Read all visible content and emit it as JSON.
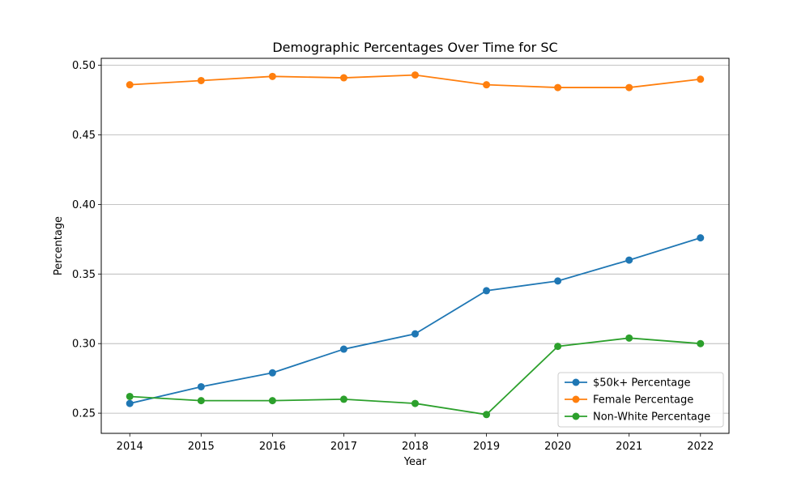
{
  "chart_data": {
    "type": "line",
    "title": "Demographic Percentages Over Time for SC",
    "xlabel": "Year",
    "ylabel": "Percentage",
    "x": [
      2014,
      2015,
      2016,
      2017,
      2018,
      2019,
      2020,
      2021,
      2022
    ],
    "xlim": [
      2013.6,
      2022.4
    ],
    "ylim": [
      0.2355,
      0.505
    ],
    "yticks": [
      "0.25",
      "0.30",
      "0.35",
      "0.40",
      "0.45",
      "0.50"
    ],
    "grid": "horizontal",
    "legend_position": "lower-right",
    "series": [
      {
        "name": "$50k+ Percentage",
        "color": "#1f77b4",
        "values": [
          0.257,
          0.269,
          0.279,
          0.296,
          0.307,
          0.338,
          0.345,
          0.36,
          0.376
        ]
      },
      {
        "name": "Female Percentage",
        "color": "#ff7f0e",
        "values": [
          0.486,
          0.489,
          0.492,
          0.491,
          0.493,
          0.486,
          0.484,
          0.484,
          0.49
        ]
      },
      {
        "name": "Non-White Percentage",
        "color": "#2ca02c",
        "values": [
          0.262,
          0.259,
          0.259,
          0.26,
          0.257,
          0.249,
          0.298,
          0.304,
          0.3
        ]
      }
    ]
  }
}
